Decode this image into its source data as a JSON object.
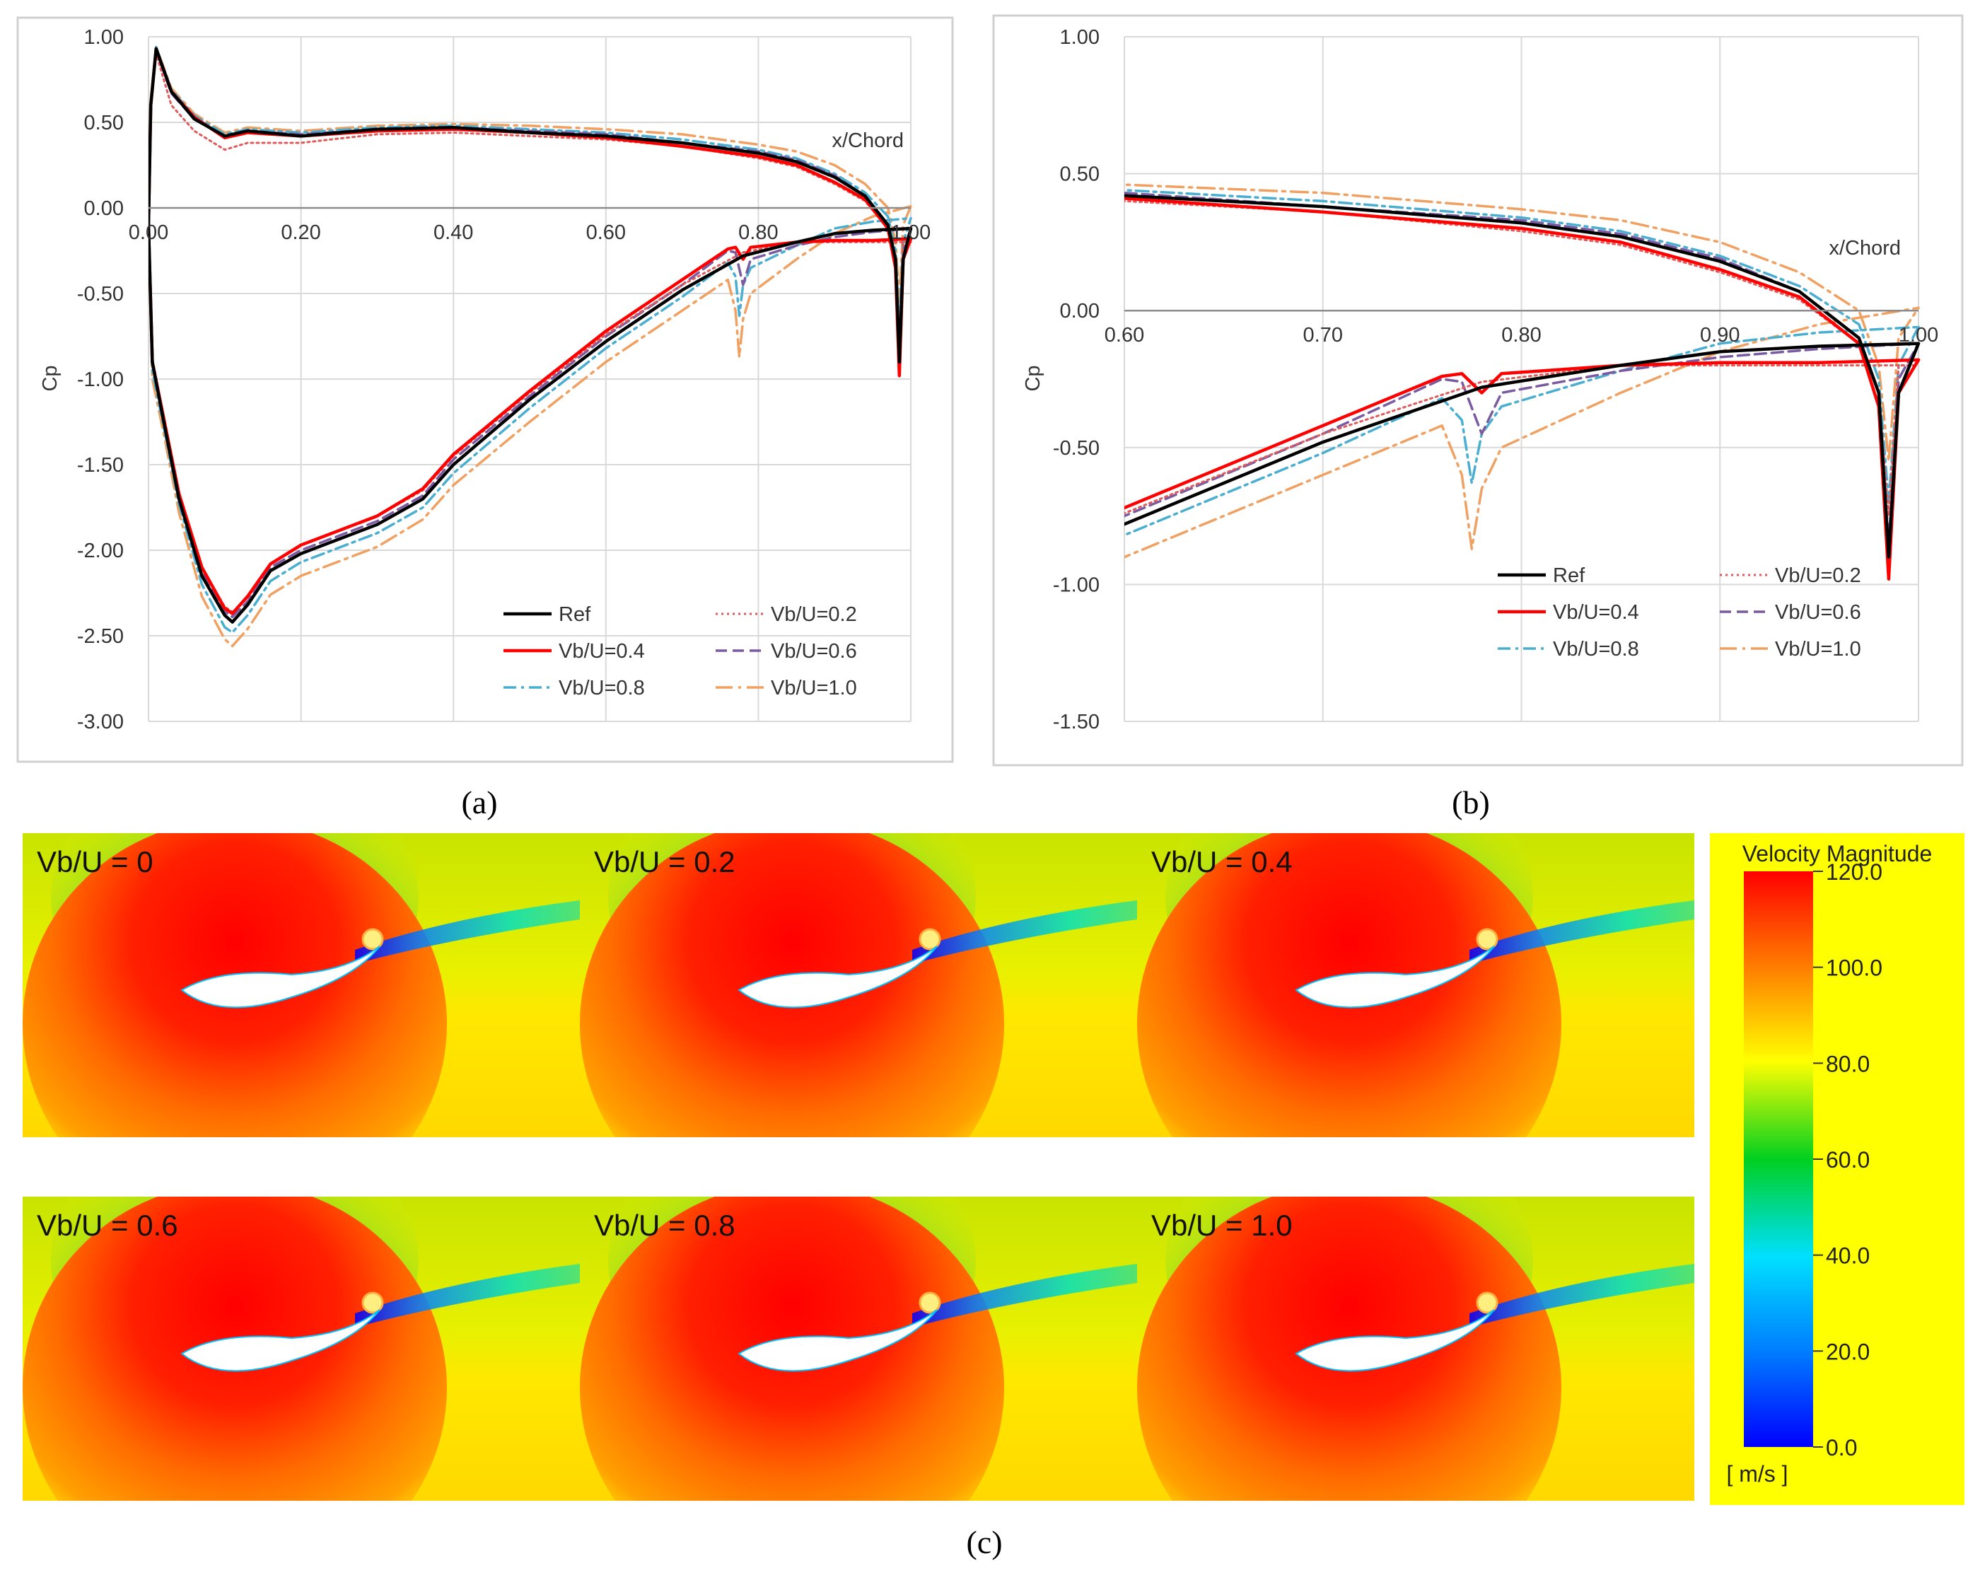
{
  "colors": {
    "ref": "#000000",
    "v02": "#e05a5a",
    "v04": "#ff0000",
    "v06": "#7a5aa0",
    "v08": "#4aaed0",
    "v10": "#f0a060",
    "grid": "#d9d9d9",
    "frame": "#d0d0d0",
    "field_bg": "#ffff00"
  },
  "panel_labels": [
    "(a)",
    "(b)",
    "(c)"
  ],
  "chart_data": [
    {
      "id": "a",
      "type": "line",
      "xlabel": "x/Chord",
      "ylabel": "Cp",
      "xlim": [
        0,
        1.0
      ],
      "ylim": [
        -3.0,
        1.0
      ],
      "x_axis_at": 0,
      "xticks": [
        "0.00",
        "0.20",
        "0.40",
        "0.60",
        "0.80",
        "1.00"
      ],
      "xtick_values": [
        0,
        0.2,
        0.4,
        0.6,
        0.8,
        1.0
      ],
      "yticks": [
        "1.00",
        "0.50",
        "0.00",
        "-0.50",
        "-1.00",
        "-1.50",
        "-2.00",
        "-2.50",
        "-3.00"
      ],
      "ytick_values": [
        1.0,
        0.5,
        0.0,
        -0.5,
        -1.0,
        -1.5,
        -2.0,
        -2.5,
        -3.0
      ],
      "legend": [
        "Ref",
        "Vb/U=0.2",
        "Vb/U=0.4",
        "Vb/U=0.6",
        "Vb/U=0.8",
        "Vb/U=1.0"
      ],
      "legend_position": "bottom-right"
    },
    {
      "id": "b",
      "type": "line",
      "xlabel": "x/Chord",
      "ylabel": "Cp",
      "xlim": [
        0.6,
        1.0
      ],
      "ylim": [
        -1.5,
        1.0
      ],
      "x_axis_at": 0,
      "xticks": [
        "0.60",
        "0.70",
        "0.80",
        "0.90",
        "1.00"
      ],
      "xtick_values": [
        0.6,
        0.7,
        0.8,
        0.9,
        1.0
      ],
      "yticks": [
        "1.00",
        "0.50",
        "0.00",
        "-0.50",
        "-1.00",
        "-1.50"
      ],
      "ytick_values": [
        1.0,
        0.5,
        0.0,
        -0.5,
        -1.0,
        -1.5
      ],
      "legend": [
        "Ref",
        "Vb/U=0.2",
        "Vb/U=0.4",
        "Vb/U=0.6",
        "Vb/U=0.8",
        "Vb/U=1.0"
      ],
      "legend_position": "lower-right"
    }
  ],
  "series": [
    {
      "name": "Ref",
      "key": "ref",
      "upper": [
        [
          0,
          -0.1
        ],
        [
          0.003,
          0.6
        ],
        [
          0.01,
          0.93
        ],
        [
          0.03,
          0.68
        ],
        [
          0.06,
          0.52
        ],
        [
          0.1,
          0.42
        ],
        [
          0.13,
          0.45
        ],
        [
          0.2,
          0.42
        ],
        [
          0.3,
          0.46
        ],
        [
          0.4,
          0.47
        ],
        [
          0.5,
          0.44
        ],
        [
          0.6,
          0.42
        ],
        [
          0.7,
          0.38
        ],
        [
          0.8,
          0.32
        ],
        [
          0.85,
          0.27
        ],
        [
          0.9,
          0.18
        ],
        [
          0.94,
          0.07
        ],
        [
          0.97,
          -0.1
        ],
        [
          0.98,
          -0.3
        ],
        [
          0.985,
          -0.9
        ],
        [
          0.99,
          -0.3
        ],
        [
          1.0,
          -0.12
        ]
      ],
      "lower": [
        [
          0,
          -0.1
        ],
        [
          0.005,
          -0.9
        ],
        [
          0.02,
          -1.25
        ],
        [
          0.04,
          -1.7
        ],
        [
          0.07,
          -2.15
        ],
        [
          0.1,
          -2.38
        ],
        [
          0.11,
          -2.42
        ],
        [
          0.13,
          -2.32
        ],
        [
          0.16,
          -2.12
        ],
        [
          0.2,
          -2.02
        ],
        [
          0.3,
          -1.85
        ],
        [
          0.36,
          -1.7
        ],
        [
          0.4,
          -1.5
        ],
        [
          0.5,
          -1.12
        ],
        [
          0.6,
          -0.78
        ],
        [
          0.7,
          -0.48
        ],
        [
          0.78,
          -0.28
        ],
        [
          0.85,
          -0.2
        ],
        [
          0.9,
          -0.15
        ],
        [
          0.95,
          -0.13
        ],
        [
          1.0,
          -0.12
        ]
      ]
    },
    {
      "name": "Vb/U=0.2",
      "key": "v02",
      "upper": [
        [
          0,
          -0.1
        ],
        [
          0.003,
          0.6
        ],
        [
          0.01,
          0.9
        ],
        [
          0.03,
          0.6
        ],
        [
          0.06,
          0.45
        ],
        [
          0.1,
          0.34
        ],
        [
          0.13,
          0.38
        ],
        [
          0.2,
          0.38
        ],
        [
          0.3,
          0.43
        ],
        [
          0.4,
          0.44
        ],
        [
          0.5,
          0.42
        ],
        [
          0.6,
          0.4
        ],
        [
          0.7,
          0.36
        ],
        [
          0.8,
          0.29
        ],
        [
          0.85,
          0.24
        ],
        [
          0.9,
          0.14
        ],
        [
          0.94,
          0.04
        ],
        [
          0.97,
          -0.12
        ],
        [
          0.98,
          -0.3
        ],
        [
          0.985,
          -0.75
        ],
        [
          0.99,
          -0.2
        ],
        [
          1.0,
          -0.2
        ]
      ],
      "lower": [
        [
          0,
          -0.1
        ],
        [
          0.005,
          -0.88
        ],
        [
          0.02,
          -1.22
        ],
        [
          0.04,
          -1.66
        ],
        [
          0.07,
          -2.1
        ],
        [
          0.1,
          -2.33
        ],
        [
          0.11,
          -2.36
        ],
        [
          0.13,
          -2.28
        ],
        [
          0.16,
          -2.08
        ],
        [
          0.2,
          -1.97
        ],
        [
          0.3,
          -1.8
        ],
        [
          0.36,
          -1.65
        ],
        [
          0.4,
          -1.45
        ],
        [
          0.5,
          -1.08
        ],
        [
          0.6,
          -0.74
        ],
        [
          0.7,
          -0.45
        ],
        [
          0.78,
          -0.26
        ],
        [
          0.85,
          -0.2
        ],
        [
          0.9,
          -0.2
        ],
        [
          0.95,
          -0.2
        ],
        [
          1.0,
          -0.2
        ]
      ]
    },
    {
      "name": "Vb/U=0.4",
      "key": "v04",
      "upper": [
        [
          0,
          -0.1
        ],
        [
          0.003,
          0.6
        ],
        [
          0.01,
          0.93
        ],
        [
          0.03,
          0.68
        ],
        [
          0.06,
          0.53
        ],
        [
          0.1,
          0.41
        ],
        [
          0.13,
          0.44
        ],
        [
          0.2,
          0.42
        ],
        [
          0.3,
          0.45
        ],
        [
          0.4,
          0.46
        ],
        [
          0.5,
          0.44
        ],
        [
          0.6,
          0.41
        ],
        [
          0.7,
          0.36
        ],
        [
          0.8,
          0.3
        ],
        [
          0.85,
          0.25
        ],
        [
          0.9,
          0.15
        ],
        [
          0.94,
          0.05
        ],
        [
          0.97,
          -0.12
        ],
        [
          0.98,
          -0.35
        ],
        [
          0.985,
          -0.98
        ],
        [
          0.99,
          -0.3
        ],
        [
          1.0,
          -0.18
        ]
      ],
      "lower": [
        [
          0,
          -0.1
        ],
        [
          0.005,
          -0.9
        ],
        [
          0.02,
          -1.23
        ],
        [
          0.04,
          -1.67
        ],
        [
          0.07,
          -2.1
        ],
        [
          0.1,
          -2.34
        ],
        [
          0.11,
          -2.37
        ],
        [
          0.13,
          -2.27
        ],
        [
          0.16,
          -2.08
        ],
        [
          0.2,
          -1.97
        ],
        [
          0.3,
          -1.8
        ],
        [
          0.36,
          -1.64
        ],
        [
          0.4,
          -1.44
        ],
        [
          0.5,
          -1.07
        ],
        [
          0.6,
          -0.72
        ],
        [
          0.7,
          -0.42
        ],
        [
          0.76,
          -0.24
        ],
        [
          0.77,
          -0.23
        ],
        [
          0.78,
          -0.3
        ],
        [
          0.79,
          -0.23
        ],
        [
          0.85,
          -0.2
        ],
        [
          0.9,
          -0.19
        ],
        [
          0.95,
          -0.19
        ],
        [
          1.0,
          -0.18
        ]
      ]
    },
    {
      "name": "Vb/U=0.6",
      "key": "v06",
      "upper": [
        [
          0,
          -0.1
        ],
        [
          0.003,
          0.6
        ],
        [
          0.01,
          0.92
        ],
        [
          0.03,
          0.67
        ],
        [
          0.06,
          0.52
        ],
        [
          0.1,
          0.42
        ],
        [
          0.13,
          0.45
        ],
        [
          0.2,
          0.43
        ],
        [
          0.3,
          0.46
        ],
        [
          0.4,
          0.47
        ],
        [
          0.5,
          0.45
        ],
        [
          0.6,
          0.43
        ],
        [
          0.7,
          0.38
        ],
        [
          0.8,
          0.33
        ],
        [
          0.85,
          0.28
        ],
        [
          0.9,
          0.19
        ],
        [
          0.94,
          0.07
        ],
        [
          0.97,
          -0.1
        ],
        [
          0.98,
          -0.3
        ],
        [
          0.985,
          -0.85
        ],
        [
          0.99,
          -0.25
        ],
        [
          1.0,
          -0.12
        ]
      ],
      "lower": [
        [
          0,
          -0.1
        ],
        [
          0.005,
          -0.9
        ],
        [
          0.02,
          -1.24
        ],
        [
          0.04,
          -1.68
        ],
        [
          0.07,
          -2.12
        ],
        [
          0.1,
          -2.36
        ],
        [
          0.11,
          -2.39
        ],
        [
          0.13,
          -2.3
        ],
        [
          0.16,
          -2.1
        ],
        [
          0.2,
          -2.0
        ],
        [
          0.3,
          -1.83
        ],
        [
          0.36,
          -1.68
        ],
        [
          0.4,
          -1.47
        ],
        [
          0.5,
          -1.1
        ],
        [
          0.6,
          -0.75
        ],
        [
          0.7,
          -0.45
        ],
        [
          0.76,
          -0.25
        ],
        [
          0.77,
          -0.26
        ],
        [
          0.78,
          -0.45
        ],
        [
          0.79,
          -0.3
        ],
        [
          0.85,
          -0.22
        ],
        [
          0.9,
          -0.17
        ],
        [
          0.95,
          -0.14
        ],
        [
          1.0,
          -0.12
        ]
      ]
    },
    {
      "name": "Vb/U=0.8",
      "key": "v08",
      "upper": [
        [
          0,
          -0.1
        ],
        [
          0.003,
          0.6
        ],
        [
          0.01,
          0.94
        ],
        [
          0.03,
          0.69
        ],
        [
          0.06,
          0.54
        ],
        [
          0.1,
          0.43
        ],
        [
          0.13,
          0.46
        ],
        [
          0.2,
          0.44
        ],
        [
          0.3,
          0.47
        ],
        [
          0.4,
          0.48
        ],
        [
          0.5,
          0.46
        ],
        [
          0.6,
          0.44
        ],
        [
          0.7,
          0.4
        ],
        [
          0.8,
          0.34
        ],
        [
          0.85,
          0.29
        ],
        [
          0.9,
          0.2
        ],
        [
          0.94,
          0.09
        ],
        [
          0.97,
          -0.05
        ],
        [
          0.98,
          -0.25
        ],
        [
          0.985,
          -0.7
        ],
        [
          0.99,
          -0.2
        ],
        [
          1.0,
          -0.06
        ]
      ],
      "lower": [
        [
          0,
          -0.1
        ],
        [
          0.005,
          -0.95
        ],
        [
          0.02,
          -1.28
        ],
        [
          0.04,
          -1.73
        ],
        [
          0.07,
          -2.2
        ],
        [
          0.1,
          -2.45
        ],
        [
          0.11,
          -2.48
        ],
        [
          0.13,
          -2.38
        ],
        [
          0.16,
          -2.18
        ],
        [
          0.2,
          -2.07
        ],
        [
          0.3,
          -1.9
        ],
        [
          0.36,
          -1.75
        ],
        [
          0.4,
          -1.55
        ],
        [
          0.5,
          -1.17
        ],
        [
          0.6,
          -0.82
        ],
        [
          0.7,
          -0.52
        ],
        [
          0.76,
          -0.32
        ],
        [
          0.77,
          -0.4
        ],
        [
          0.775,
          -0.63
        ],
        [
          0.78,
          -0.45
        ],
        [
          0.79,
          -0.35
        ],
        [
          0.85,
          -0.22
        ],
        [
          0.9,
          -0.12
        ],
        [
          0.95,
          -0.08
        ],
        [
          1.0,
          -0.06
        ]
      ]
    },
    {
      "name": "Vb/U=1.0",
      "key": "v10",
      "upper": [
        [
          0,
          -0.1
        ],
        [
          0.003,
          0.6
        ],
        [
          0.01,
          0.94
        ],
        [
          0.03,
          0.7
        ],
        [
          0.06,
          0.55
        ],
        [
          0.1,
          0.44
        ],
        [
          0.13,
          0.47
        ],
        [
          0.2,
          0.45
        ],
        [
          0.3,
          0.48
        ],
        [
          0.4,
          0.49
        ],
        [
          0.5,
          0.48
        ],
        [
          0.6,
          0.46
        ],
        [
          0.7,
          0.43
        ],
        [
          0.8,
          0.37
        ],
        [
          0.85,
          0.33
        ],
        [
          0.9,
          0.25
        ],
        [
          0.94,
          0.14
        ],
        [
          0.97,
          0.0
        ],
        [
          0.98,
          -0.2
        ],
        [
          0.985,
          -0.55
        ],
        [
          0.99,
          -0.1
        ],
        [
          1.0,
          0.01
        ]
      ],
      "lower": [
        [
          0,
          -0.1
        ],
        [
          0.005,
          -1.0
        ],
        [
          0.02,
          -1.32
        ],
        [
          0.04,
          -1.78
        ],
        [
          0.07,
          -2.27
        ],
        [
          0.1,
          -2.52
        ],
        [
          0.11,
          -2.56
        ],
        [
          0.13,
          -2.46
        ],
        [
          0.16,
          -2.26
        ],
        [
          0.2,
          -2.15
        ],
        [
          0.3,
          -1.98
        ],
        [
          0.36,
          -1.82
        ],
        [
          0.4,
          -1.62
        ],
        [
          0.5,
          -1.25
        ],
        [
          0.6,
          -0.9
        ],
        [
          0.7,
          -0.6
        ],
        [
          0.76,
          -0.42
        ],
        [
          0.77,
          -0.6
        ],
        [
          0.775,
          -0.87
        ],
        [
          0.78,
          -0.65
        ],
        [
          0.79,
          -0.5
        ],
        [
          0.85,
          -0.3
        ],
        [
          0.9,
          -0.15
        ],
        [
          0.95,
          -0.05
        ],
        [
          1.0,
          0.01
        ]
      ]
    }
  ],
  "contours": {
    "titles": [
      "Vb/U = 0",
      "Vb/U = 0.2",
      "Vb/U = 0.4",
      "Vb/U = 0.6",
      "Vb/U = 0.8",
      "Vb/U = 1.0"
    ],
    "vb_u": [
      0,
      0.2,
      0.4,
      0.6,
      0.8,
      1.0
    ],
    "colorbar": {
      "title": "Velocity Magnitude",
      "unit": "[ m/s ]",
      "min": 0,
      "max": 120,
      "ticks": [
        "120.0",
        "100.0",
        "80.0",
        "60.0",
        "40.0",
        "20.0",
        "0.0"
      ],
      "tick_values": [
        120,
        100,
        80,
        60,
        40,
        20,
        0
      ]
    }
  }
}
